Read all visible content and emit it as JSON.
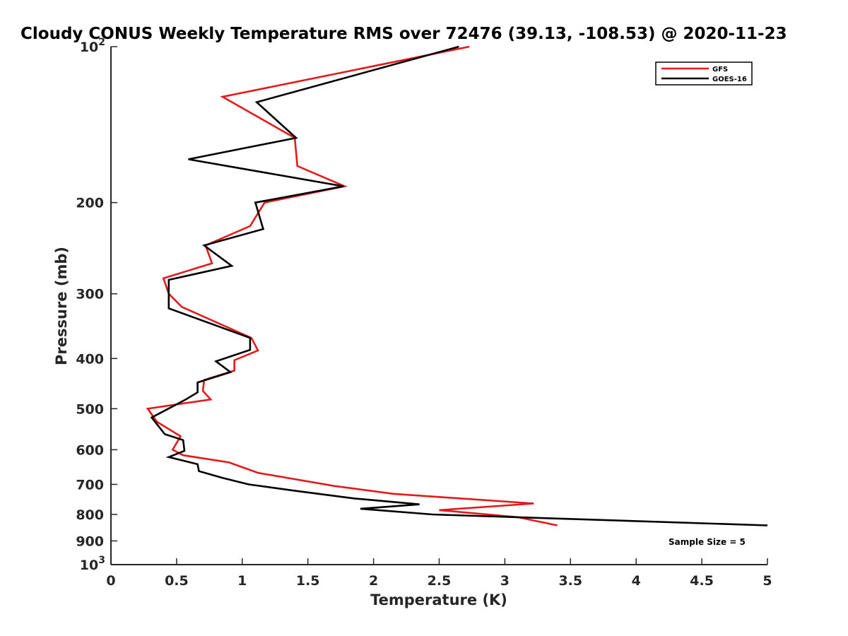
{
  "chart_data": {
    "type": "line",
    "title": "Cloudy CONUS Weekly Temperature RMS over 72476 (39.13, -108.53) @ 2020-11-23",
    "xlabel": "Temperature (K)",
    "ylabel": "Pressure (mb)",
    "xlim": [
      0,
      5
    ],
    "ylim": [
      100,
      1000
    ],
    "yscale": "log",
    "y_reversed": true,
    "grid": false,
    "legend_position": "top-right",
    "x_ticks": [
      {
        "value": 0,
        "label": "0"
      },
      {
        "value": 0.5,
        "label": "0.5"
      },
      {
        "value": 1,
        "label": "1"
      },
      {
        "value": 1.5,
        "label": "1.5"
      },
      {
        "value": 2,
        "label": "2"
      },
      {
        "value": 2.5,
        "label": "2.5"
      },
      {
        "value": 3,
        "label": "3"
      },
      {
        "value": 3.5,
        "label": "3.5"
      },
      {
        "value": 4,
        "label": "4"
      },
      {
        "value": 4.5,
        "label": "4.5"
      },
      {
        "value": 5,
        "label": "5"
      }
    ],
    "y_ticks": [
      {
        "value": 100,
        "base": "10",
        "exp": "2"
      },
      {
        "value": 200,
        "label": "200"
      },
      {
        "value": 300,
        "label": "300"
      },
      {
        "value": 400,
        "label": "400"
      },
      {
        "value": 500,
        "label": "500"
      },
      {
        "value": 600,
        "label": "600"
      },
      {
        "value": 700,
        "label": "700"
      },
      {
        "value": 800,
        "label": "800"
      },
      {
        "value": 900,
        "label": "900"
      },
      {
        "value": 1000,
        "base": "10",
        "exp": "3"
      }
    ],
    "annotation": "Sample Size = 5",
    "series": [
      {
        "name": "GFS",
        "color": "#e31a1c",
        "points": [
          [
            2.73,
            100
          ],
          [
            0.85,
            125
          ],
          [
            1.4,
            150
          ],
          [
            1.42,
            170
          ],
          [
            1.78,
            186
          ],
          [
            1.17,
            200
          ],
          [
            1.06,
            222
          ],
          [
            0.72,
            242
          ],
          [
            0.77,
            262
          ],
          [
            0.4,
            280
          ],
          [
            0.44,
            300
          ],
          [
            0.54,
            318
          ],
          [
            1.07,
            365
          ],
          [
            1.12,
            386
          ],
          [
            0.94,
            403
          ],
          [
            0.94,
            422
          ],
          [
            0.71,
            440
          ],
          [
            0.7,
            462
          ],
          [
            0.76,
            480
          ],
          [
            0.28,
            500
          ],
          [
            0.35,
            530
          ],
          [
            0.53,
            565
          ],
          [
            0.47,
            600
          ],
          [
            0.55,
            615
          ],
          [
            0.9,
            635
          ],
          [
            1.12,
            665
          ],
          [
            1.7,
            705
          ],
          [
            2.15,
            730
          ],
          [
            3.22,
            762
          ],
          [
            2.5,
            785
          ],
          [
            3.1,
            810
          ],
          [
            3.4,
            840
          ]
        ]
      },
      {
        "name": "GOES-16",
        "color": "#000000",
        "points": [
          [
            2.65,
            100
          ],
          [
            1.11,
            128
          ],
          [
            1.41,
            150
          ],
          [
            0.59,
            165
          ],
          [
            1.77,
            186
          ],
          [
            1.1,
            200
          ],
          [
            1.16,
            225
          ],
          [
            0.71,
            242
          ],
          [
            0.92,
            265
          ],
          [
            0.44,
            282
          ],
          [
            0.44,
            320
          ],
          [
            1.06,
            365
          ],
          [
            1.06,
            385
          ],
          [
            0.8,
            405
          ],
          [
            0.91,
            425
          ],
          [
            0.66,
            445
          ],
          [
            0.66,
            465
          ],
          [
            0.57,
            480
          ],
          [
            0.31,
            520
          ],
          [
            0.41,
            560
          ],
          [
            0.55,
            575
          ],
          [
            0.56,
            603
          ],
          [
            0.44,
            620
          ],
          [
            0.66,
            640
          ],
          [
            0.67,
            660
          ],
          [
            0.85,
            680
          ],
          [
            1.05,
            700
          ],
          [
            1.4,
            720
          ],
          [
            1.85,
            745
          ],
          [
            2.35,
            765
          ],
          [
            1.9,
            780
          ],
          [
            2.45,
            800
          ],
          [
            5.0,
            840
          ]
        ]
      }
    ]
  }
}
